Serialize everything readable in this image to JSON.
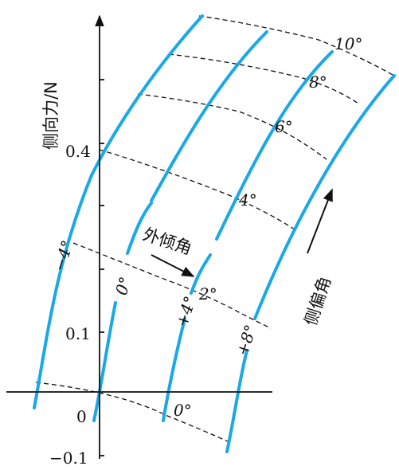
{
  "colors": {
    "camber_curves": "#1aa8e6",
    "axes": "#111111",
    "slip_lines": "#111111"
  },
  "y_axis": {
    "title": "侧向力/N",
    "tick_labels": [
      "0.4",
      "0.1",
      "0",
      "−0.1"
    ]
  },
  "camber_curves": {
    "title": "外倾角",
    "labels": [
      "−4°",
      "0°",
      "+4°",
      "+8°"
    ]
  },
  "slip_lines": {
    "title": "侧偏角",
    "labels": [
      "0°",
      "2°",
      "4°",
      "6°",
      "8°",
      "10°"
    ]
  }
}
